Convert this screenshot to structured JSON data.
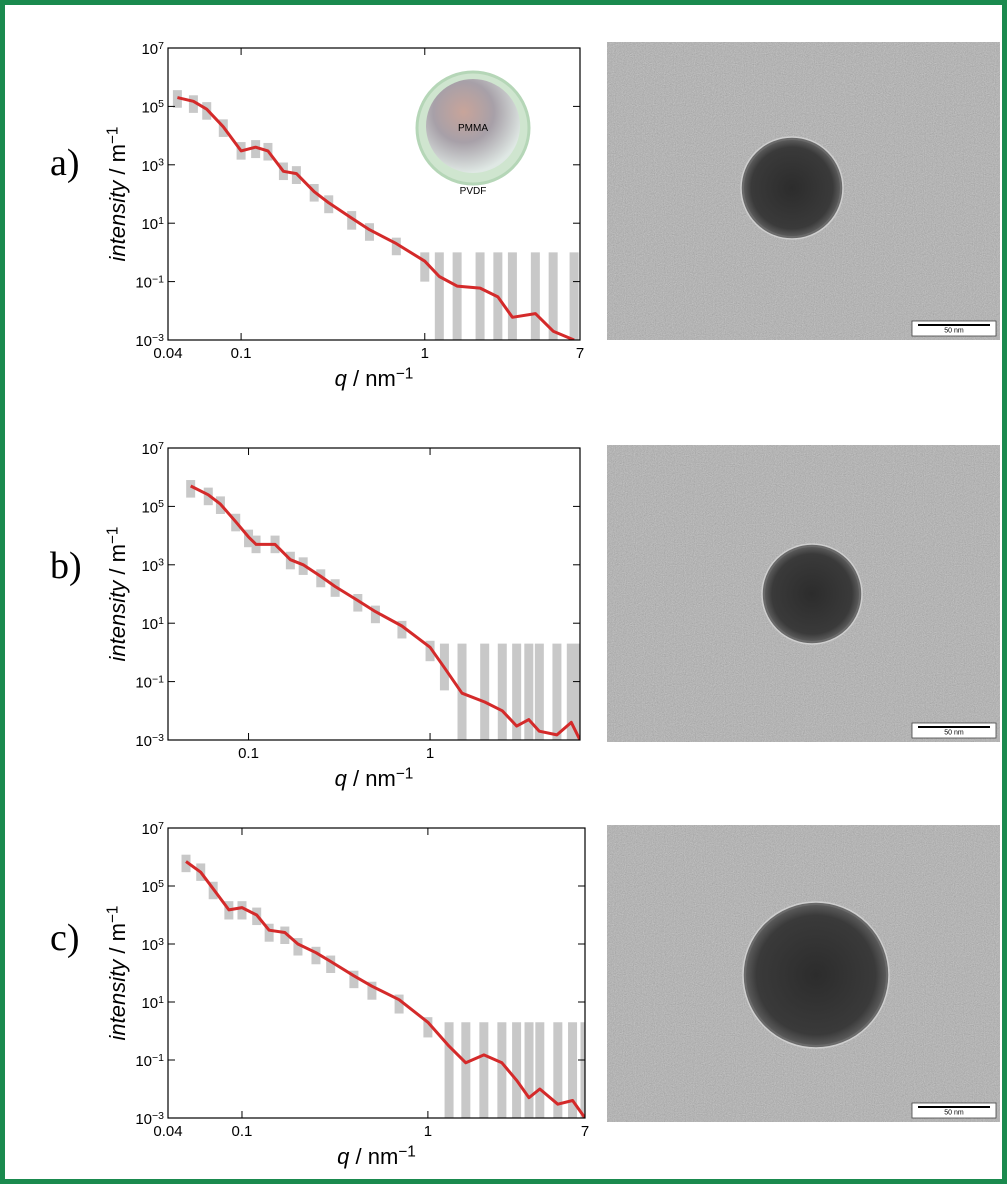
{
  "panel_labels": [
    "a)",
    "b)",
    "c)"
  ],
  "inset": {
    "core": "PMMA",
    "shell": "PVDF"
  },
  "scale_bars": [
    "50 nm",
    "50 nm",
    "50 nm"
  ],
  "chart_data": [
    {
      "type": "line",
      "x_label": "q / nm^−1",
      "y_label": "intensity / m^−1",
      "log_x": true,
      "log_y": true,
      "xlim": [
        0.04,
        7
      ],
      "ylim": [
        0.001,
        10000000
      ],
      "xticks": [
        0.04,
        0.1,
        1,
        7
      ],
      "yticks": [
        {
          "value": 0.001,
          "label": "10^−3"
        },
        {
          "value": 0.1,
          "label": "10^−1"
        },
        {
          "value": 10,
          "label": "10^1"
        },
        {
          "value": 1000,
          "label": "10^3"
        },
        {
          "value": 100000,
          "label": "10^5"
        },
        {
          "value": 10000000,
          "label": "10^7"
        }
      ],
      "x": [
        0.045,
        0.055,
        0.065,
        0.08,
        0.1,
        0.12,
        0.14,
        0.17,
        0.2,
        0.25,
        0.3,
        0.4,
        0.5,
        0.7,
        1,
        1.2,
        1.5,
        2,
        2.5,
        3,
        4,
        5,
        6.5
      ],
      "series": [
        {
          "color": "#c8c8c8",
          "values": [
            180000,
            120000,
            70000,
            18000,
            3000,
            3500,
            2800,
            600,
            450,
            110,
            45,
            13,
            5,
            1.6,
            0.4,
            0.1,
            0.06,
            0.05,
            0.03,
            0.01,
            0.008,
            0.003,
            0.002
          ],
          "lower": [
            90000,
            60000,
            35000,
            9000,
            1500,
            1700,
            1400,
            300,
            220,
            55,
            22,
            6,
            2.5,
            0.8,
            0.1,
            0.001,
            0.001,
            0.001,
            0.001,
            0.001,
            0.001,
            0.001,
            0.001
          ],
          "upper": [
            360000,
            240000,
            140000,
            36000,
            6000,
            7000,
            5600,
            1200,
            900,
            220,
            90,
            26,
            10,
            3.2,
            1,
            1,
            1,
            1,
            1,
            1,
            1,
            1,
            1
          ]
        },
        {
          "color": "#d42a2a",
          "values": [
            200000,
            150000,
            80000,
            20000,
            3000,
            4000,
            3000,
            600,
            500,
            120,
            50,
            15,
            6,
            2,
            0.5,
            0.15,
            0.07,
            0.06,
            0.03,
            0.006,
            0.008,
            0.002,
            0.001
          ]
        }
      ]
    },
    {
      "type": "line",
      "x_label": "q / nm^−1",
      "y_label": "intensity / m^−1",
      "log_x": true,
      "log_y": true,
      "xlim": [
        0.036,
        6.7
      ],
      "ylim": [
        0.001,
        10000000
      ],
      "xticks": [
        0.1,
        1
      ],
      "yticks": [
        {
          "value": 0.001,
          "label": "10^−3"
        },
        {
          "value": 0.1,
          "label": "10^−1"
        },
        {
          "value": 10,
          "label": "10^1"
        },
        {
          "value": 1000,
          "label": "10^3"
        },
        {
          "value": 100000,
          "label": "10^5"
        },
        {
          "value": 10000000,
          "label": "10^7"
        }
      ],
      "x": [
        0.048,
        0.06,
        0.07,
        0.085,
        0.1,
        0.11,
        0.14,
        0.17,
        0.2,
        0.25,
        0.3,
        0.4,
        0.5,
        0.7,
        1,
        1.2,
        1.5,
        2,
        2.5,
        3,
        3.5,
        4,
        5,
        6,
        6.7
      ],
      "series": [
        {
          "color": "#c8c8c8",
          "values": [
            400000,
            220000,
            110000,
            28000,
            8000,
            5000,
            5000,
            1400,
            900,
            350,
            160,
            50,
            20,
            6,
            1.2,
            0.3,
            0.05,
            0.03,
            0.02,
            0.01,
            0.01,
            0.005,
            0.005,
            0.005,
            0.003
          ],
          "lower": [
            200000,
            110000,
            55000,
            14000,
            4000,
            2500,
            2500,
            700,
            450,
            170,
            80,
            25,
            10,
            3,
            0.5,
            0.05,
            0.001,
            0.001,
            0.001,
            0.001,
            0.001,
            0.001,
            0.001,
            0.001,
            0.001
          ],
          "upper": [
            800000,
            440000,
            220000,
            56000,
            16000,
            10000,
            10000,
            2800,
            1800,
            700,
            320,
            100,
            40,
            12,
            2.5,
            2,
            2,
            2,
            2,
            2,
            2,
            2,
            2,
            2,
            2
          ]
        },
        {
          "color": "#d42a2a",
          "values": [
            500000,
            250000,
            120000,
            30000,
            9000,
            5000,
            5000,
            1500,
            1000,
            400,
            180,
            60,
            25,
            8,
            1.5,
            0.3,
            0.04,
            0.02,
            0.01,
            0.003,
            0.005,
            0.002,
            0.0015,
            0.004,
            0.001
          ]
        }
      ]
    },
    {
      "type": "line",
      "x_label": "q / nm^−1",
      "y_label": "intensity / m^−1",
      "log_x": true,
      "log_y": true,
      "xlim": [
        0.04,
        7
      ],
      "ylim": [
        0.001,
        10000000
      ],
      "xticks": [
        0.04,
        0.1,
        1,
        7
      ],
      "yticks": [
        {
          "value": 0.001,
          "label": "10^−3"
        },
        {
          "value": 0.1,
          "label": "10^−1"
        },
        {
          "value": 10,
          "label": "10^1"
        },
        {
          "value": 1000,
          "label": "10^3"
        },
        {
          "value": 100000,
          "label": "10^5"
        },
        {
          "value": 10000000,
          "label": "10^7"
        }
      ],
      "x": [
        0.05,
        0.06,
        0.07,
        0.085,
        0.1,
        0.12,
        0.14,
        0.17,
        0.2,
        0.25,
        0.3,
        0.4,
        0.5,
        0.7,
        1,
        1.3,
        1.6,
        2,
        2.5,
        3,
        3.5,
        4,
        5,
        6,
        7
      ],
      "series": [
        {
          "color": "#c8c8c8",
          "values": [
            600000,
            300000,
            70000,
            15000,
            15000,
            9000,
            2500,
            2000,
            800,
            400,
            200,
            60,
            25,
            9,
            1.5,
            0.3,
            0.1,
            0.1,
            0.05,
            0.02,
            0.01,
            0.01,
            0.005,
            0.005,
            0.003
          ],
          "lower": [
            300000,
            150000,
            35000,
            7000,
            7000,
            4500,
            1200,
            1000,
            400,
            200,
            100,
            30,
            12,
            4,
            0.6,
            0.001,
            0.001,
            0.001,
            0.001,
            0.001,
            0.001,
            0.001,
            0.001,
            0.001,
            0.001
          ],
          "upper": [
            1200000,
            600000,
            140000,
            30000,
            30000,
            18000,
            5000,
            4000,
            1600,
            800,
            400,
            120,
            50,
            18,
            3,
            2,
            2,
            2,
            2,
            2,
            2,
            2,
            2,
            2,
            2
          ]
        },
        {
          "color": "#d42a2a",
          "values": [
            700000,
            300000,
            80000,
            15000,
            18000,
            10000,
            3000,
            2500,
            1000,
            500,
            250,
            80,
            35,
            12,
            2,
            0.3,
            0.08,
            0.15,
            0.08,
            0.02,
            0.005,
            0.01,
            0.003,
            0.004,
            0.001
          ]
        }
      ]
    }
  ]
}
